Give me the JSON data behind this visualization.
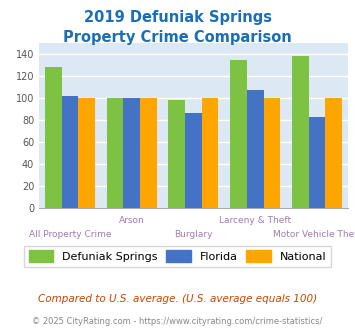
{
  "title_line1": "2019 Defuniak Springs",
  "title_line2": "Property Crime Comparison",
  "categories": [
    "All Property Crime",
    "Arson",
    "Burglary",
    "Larceny & Theft",
    "Motor Vehicle Theft"
  ],
  "defuniak": [
    128,
    100,
    98,
    134,
    138
  ],
  "florida": [
    102,
    100,
    86,
    107,
    83
  ],
  "national": [
    100,
    100,
    100,
    100,
    100
  ],
  "bar_colors": {
    "defuniak": "#7dc242",
    "florida": "#4472c4",
    "national": "#ffa500"
  },
  "ylim": [
    0,
    150
  ],
  "yticks": [
    0,
    20,
    40,
    60,
    80,
    100,
    120,
    140
  ],
  "legend_labels": [
    "Defuniak Springs",
    "Florida",
    "National"
  ],
  "footnote1": "Compared to U.S. average. (U.S. average equals 100)",
  "footnote2": "© 2025 CityRating.com - https://www.cityrating.com/crime-statistics/",
  "title_color": "#1a6eb5",
  "xlabel_color": "#9e7bb5",
  "footnote1_color": "#cc4400",
  "footnote2_color": "#888888",
  "bg_color": "#dce9f5",
  "fig_bg": "#ffffff",
  "grid_color": "#ffffff",
  "top_labels": [
    "",
    "Arson",
    "",
    "Larceny & Theft",
    ""
  ],
  "bottom_labels": [
    "All Property Crime",
    "",
    "Burglary",
    "",
    "Motor Vehicle Theft"
  ]
}
